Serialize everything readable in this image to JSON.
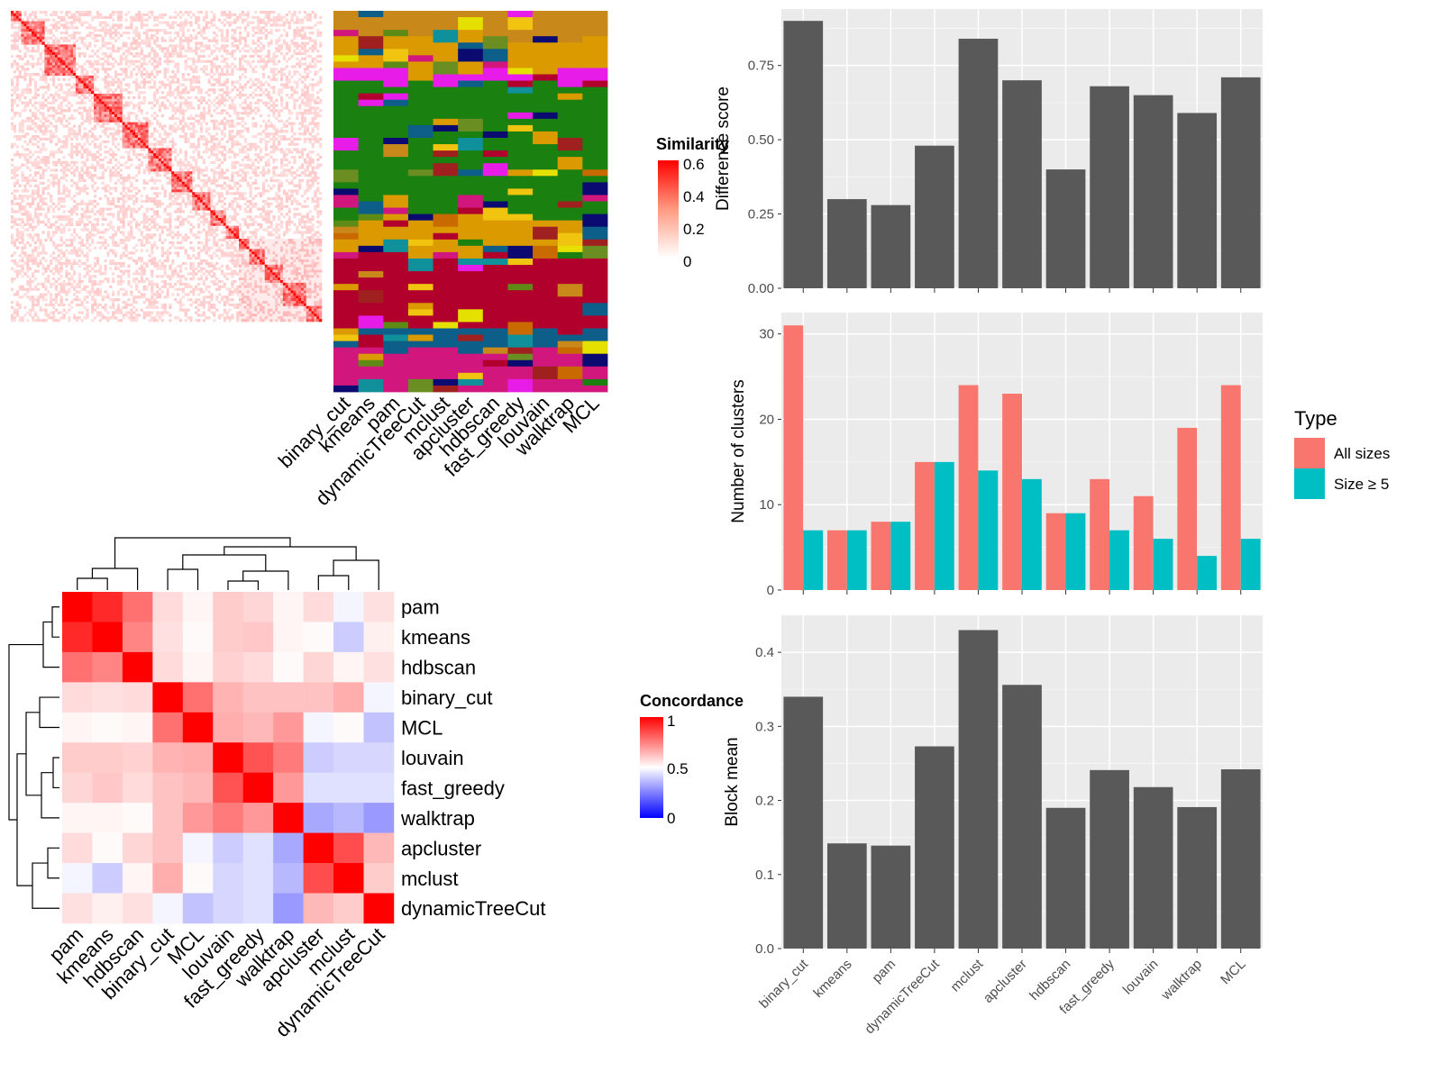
{
  "method_labels": [
    "binary_cut",
    "kmeans",
    "pam",
    "dynamicTreeCut",
    "mclust",
    "apcluster",
    "hdbscan",
    "fast_greedy",
    "louvain",
    "walktrap",
    "MCL"
  ],
  "similarity_legend": {
    "title": "Similarity",
    "ticks": [
      "0.6",
      "0.4",
      "0.2",
      "0"
    ]
  },
  "concordance_legend": {
    "title": "Concordance",
    "ticks": [
      "1",
      "0.5",
      "0"
    ]
  },
  "concordance_order": [
    "pam",
    "kmeans",
    "hdbscan",
    "binary_cut",
    "MCL",
    "louvain",
    "fast_greedy",
    "walktrap",
    "apcluster",
    "mclust",
    "dynamicTreeCut"
  ],
  "concordance_matrix": [
    [
      1.0,
      0.92,
      0.78,
      0.57,
      0.52,
      0.6,
      0.58,
      0.52,
      0.57,
      0.48,
      0.56
    ],
    [
      0.92,
      1.0,
      0.74,
      0.56,
      0.51,
      0.6,
      0.61,
      0.52,
      0.51,
      0.4,
      0.53
    ],
    [
      0.78,
      0.74,
      1.0,
      0.57,
      0.52,
      0.59,
      0.57,
      0.51,
      0.58,
      0.52,
      0.56
    ],
    [
      0.57,
      0.56,
      0.57,
      1.0,
      0.78,
      0.65,
      0.62,
      0.62,
      0.62,
      0.66,
      0.48
    ],
    [
      0.52,
      0.51,
      0.52,
      0.78,
      1.0,
      0.66,
      0.64,
      0.7,
      0.48,
      0.51,
      0.38
    ],
    [
      0.6,
      0.6,
      0.59,
      0.65,
      0.66,
      1.0,
      0.84,
      0.76,
      0.4,
      0.42,
      0.42
    ],
    [
      0.58,
      0.61,
      0.57,
      0.62,
      0.64,
      0.84,
      1.0,
      0.7,
      0.44,
      0.44,
      0.44
    ],
    [
      0.52,
      0.52,
      0.51,
      0.62,
      0.7,
      0.76,
      0.7,
      1.0,
      0.33,
      0.36,
      0.3
    ],
    [
      0.57,
      0.51,
      0.58,
      0.62,
      0.48,
      0.4,
      0.44,
      0.33,
      1.0,
      0.85,
      0.64
    ],
    [
      0.48,
      0.4,
      0.52,
      0.66,
      0.51,
      0.42,
      0.44,
      0.36,
      0.85,
      1.0,
      0.6
    ],
    [
      0.56,
      0.53,
      0.56,
      0.48,
      0.38,
      0.42,
      0.44,
      0.3,
      0.64,
      0.6,
      1.0
    ]
  ],
  "chart_data": [
    {
      "type": "heatmap",
      "description_ref": "term similarity heatmap with diagonal blocks",
      "block_sizes": [
        4,
        9,
        12,
        7,
        11,
        10,
        9,
        8,
        7,
        6,
        5,
        4,
        6,
        7,
        9,
        8,
        11,
        6
      ],
      "legend": {
        "title": "Similarity",
        "range": [
          0,
          0.6
        ]
      }
    },
    {
      "type": "heatmap",
      "categories": [
        "binary_cut",
        "kmeans",
        "pam",
        "dynamicTreeCut",
        "mclust",
        "apcluster",
        "hdbscan",
        "fast_greedy",
        "louvain",
        "walktrap",
        "MCL"
      ]
    },
    {
      "type": "heatmap",
      "categories": [
        "pam",
        "kmeans",
        "hdbscan",
        "binary_cut",
        "MCL",
        "louvain",
        "fast_greedy",
        "walktrap",
        "apcluster",
        "mclust",
        "dynamicTreeCut"
      ],
      "legend": {
        "title": "Concordance",
        "range": [
          0,
          1
        ]
      }
    },
    {
      "type": "bar",
      "categories": [
        "binary_cut",
        "kmeans",
        "pam",
        "dynamicTreeCut",
        "mclust",
        "apcluster",
        "hdbscan",
        "fast_greedy",
        "louvain",
        "walktrap",
        "MCL"
      ],
      "values": [
        0.9,
        0.3,
        0.28,
        0.48,
        0.84,
        0.7,
        0.4,
        0.68,
        0.65,
        0.59,
        0.71
      ],
      "ylabel": "Difference score",
      "ylim": [
        0,
        0.94
      ],
      "ticks": [
        0,
        0.25,
        0.5,
        0.75
      ],
      "tick_labels": [
        "0.00",
        "0.25",
        "0.50",
        "0.75"
      ]
    },
    {
      "type": "bar",
      "categories": [
        "binary_cut",
        "kmeans",
        "pam",
        "dynamicTreeCut",
        "mclust",
        "apcluster",
        "hdbscan",
        "fast_greedy",
        "louvain",
        "walktrap",
        "MCL"
      ],
      "series": [
        {
          "name": "All sizes",
          "color": "#F8766D",
          "values": [
            31,
            7,
            8,
            15,
            24,
            23,
            9,
            13,
            11,
            19,
            24
          ]
        },
        {
          "name": "Size ≥ 5",
          "color": "#00BFC4",
          "values": [
            7,
            7,
            8,
            15,
            14,
            13,
            9,
            7,
            6,
            4,
            6
          ]
        }
      ],
      "ylabel": "Number of clusters",
      "ylim": [
        0,
        32.5
      ],
      "ticks": [
        0,
        10,
        20,
        30
      ],
      "legend": {
        "title": "Type",
        "position": "right"
      }
    },
    {
      "type": "bar",
      "categories": [
        "binary_cut",
        "kmeans",
        "pam",
        "dynamicTreeCut",
        "mclust",
        "apcluster",
        "hdbscan",
        "fast_greedy",
        "louvain",
        "walktrap",
        "MCL"
      ],
      "values": [
        0.34,
        0.142,
        0.139,
        0.273,
        0.43,
        0.356,
        0.19,
        0.241,
        0.218,
        0.191,
        0.242
      ],
      "ylabel": "Block mean",
      "ylim": [
        0,
        0.45
      ],
      "ticks": [
        0,
        0.1,
        0.2,
        0.3,
        0.4
      ],
      "tick_labels": [
        "0.0",
        "0.1",
        "0.2",
        "0.3",
        "0.4"
      ]
    }
  ]
}
